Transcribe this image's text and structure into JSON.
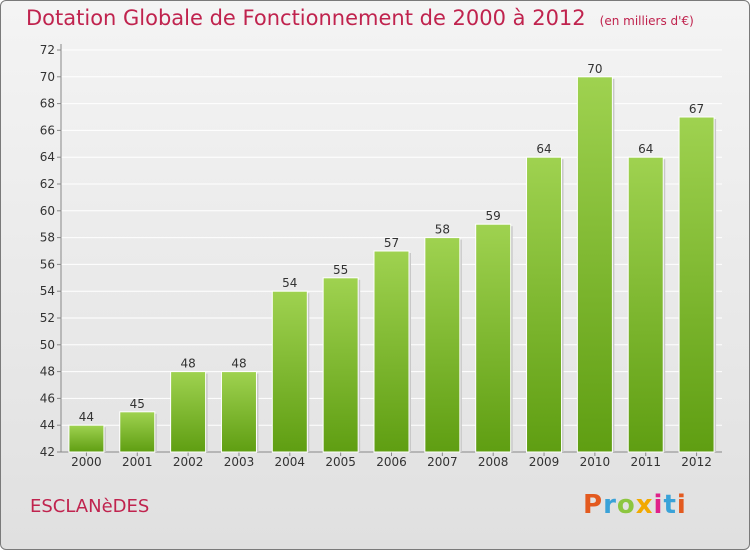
{
  "header": {
    "title": "Dotation Globale de Fonctionnement de 2000 à 2012",
    "subtitle": "(en milliers d'€)"
  },
  "footer": {
    "commune": "ESCLANèDES",
    "logo_text": "Proxiti"
  },
  "colors": {
    "title": "#c0234e",
    "bar_light": "#9fd250",
    "bar_dark": "#5f9e12"
  },
  "chart_data": {
    "type": "bar",
    "categories": [
      "2000",
      "2001",
      "2002",
      "2003",
      "2004",
      "2005",
      "2006",
      "2007",
      "2008",
      "2009",
      "2010",
      "2011",
      "2012"
    ],
    "values": [
      44,
      45,
      48,
      48,
      54,
      55,
      57,
      58,
      59,
      64,
      70,
      64,
      67
    ],
    "ylim": [
      42,
      72
    ],
    "yticks": [
      42,
      44,
      46,
      48,
      50,
      52,
      54,
      56,
      58,
      60,
      62,
      64,
      66,
      68,
      70,
      72
    ],
    "grid": true,
    "legend": "none"
  }
}
